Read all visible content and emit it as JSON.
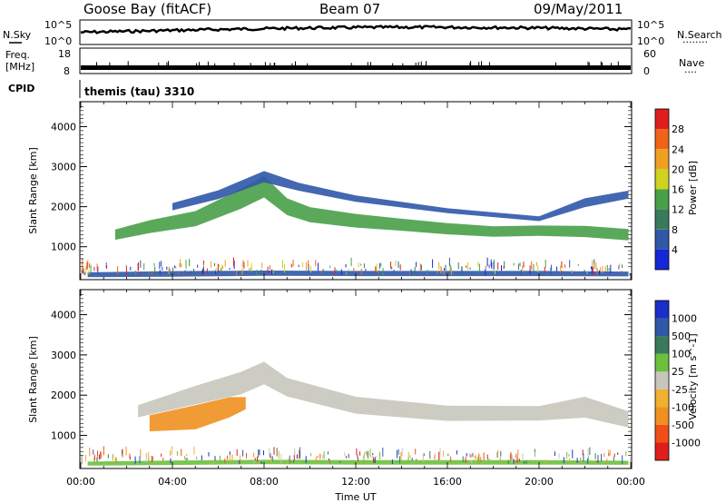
{
  "header": {
    "station": "Goose Bay (fitACF)",
    "beam": "Beam 07",
    "date": "09/May/2011"
  },
  "noise_panel": {
    "left_label": "N.Sky",
    "right_label": "N.Search",
    "right_marker": "........",
    "left_ticks": [
      "10^5",
      "10^0"
    ],
    "right_ticks": [
      "10^5",
      "10^0"
    ]
  },
  "freq_panel": {
    "left_label_line1": "Freq.",
    "left_label_line2": "[MHz]",
    "left_ticks": [
      "18",
      "8"
    ],
    "right_label": "Nave",
    "right_marker": "....",
    "right_ticks": [
      "60",
      "0"
    ]
  },
  "cpid": {
    "label": "CPID",
    "value": "themis (tau) 3310"
  },
  "x_axis": {
    "label": "Time UT",
    "ticks": [
      "00:00",
      "04:00",
      "08:00",
      "12:00",
      "16:00",
      "20:00",
      "00:00"
    ]
  },
  "colors": {
    "power_scale": [
      "#1428d8",
      "#2f58a8",
      "#3a7a5c",
      "#48a048",
      "#cfd21e",
      "#f0a020",
      "#f06418",
      "#e01e1e"
    ],
    "velocity_scale": [
      "#e01e1e",
      "#f05018",
      "#f09020",
      "#f0b030",
      "#c6c6bd",
      "#6cc03c",
      "#3a7a5c",
      "#2f58a8",
      "#1a30c8"
    ],
    "ground_scatter": "#c6c6bd"
  },
  "chart_data": [
    {
      "type": "heatmap",
      "title": "Power",
      "xlabel": "Time UT",
      "ylabel": "Slant Range [km]",
      "xlim": [
        "00:00",
        "24:00"
      ],
      "ylim": [
        200,
        4600
      ],
      "y_ticks": [
        1000,
        2000,
        3000,
        4000
      ],
      "colorbar": {
        "label": "Power [dB]",
        "ticks": [
          "4",
          "8",
          "12",
          "16",
          "20",
          "24",
          "28"
        ]
      },
      "bands": [
        {
          "name": "main-echo-band",
          "color": "#48a048",
          "points": [
            [
              1.5,
              1300
            ],
            [
              3,
              1500
            ],
            [
              5,
              1700
            ],
            [
              7,
              2200
            ],
            [
              8,
              2500
            ],
            [
              9,
              2000
            ],
            [
              10,
              1800
            ],
            [
              12,
              1650
            ],
            [
              14,
              1550
            ],
            [
              16,
              1450
            ],
            [
              18,
              1380
            ],
            [
              20,
              1400
            ],
            [
              22,
              1380
            ],
            [
              23.9,
              1300
            ]
          ],
          "thickness": [
            260,
            320,
            380,
            500,
            540,
            420,
            380,
            340,
            300,
            280,
            260,
            260,
            280,
            280
          ]
        },
        {
          "name": "upper-echo-arc",
          "color": "#2f58a8",
          "points": [
            [
              4,
              2000
            ],
            [
              6,
              2300
            ],
            [
              8,
              2750
            ],
            [
              9.5,
              2500
            ],
            [
              12,
              2200
            ],
            [
              16,
              1900
            ],
            [
              20,
              1700
            ],
            [
              22,
              2100
            ],
            [
              23.9,
              2300
            ]
          ],
          "thickness": [
            180,
            220,
            280,
            200,
            160,
            120,
            120,
            220,
            200
          ]
        },
        {
          "name": "near-range-band",
          "color": "#2f58a8",
          "points": [
            [
              0.3,
              300
            ],
            [
              4,
              320
            ],
            [
              8,
              340
            ],
            [
              12,
              330
            ],
            [
              16,
              330
            ],
            [
              20,
              330
            ],
            [
              23.9,
              320
            ]
          ],
          "thickness": [
            120,
            140,
            130,
            130,
            130,
            130,
            120
          ]
        }
      ]
    },
    {
      "type": "heatmap",
      "title": "Velocity",
      "xlabel": "Time UT",
      "ylabel": "Slant Range [km]",
      "xlim": [
        "00:00",
        "24:00"
      ],
      "ylim": [
        200,
        4600
      ],
      "y_ticks": [
        1000,
        2000,
        3000,
        4000
      ],
      "colorbar": {
        "label": "Velocity [m s^-1]",
        "ticks": [
          "-1000",
          "-500",
          "-100",
          "-25",
          "25",
          "100",
          "500",
          "1000"
        ]
      },
      "bands": [
        {
          "name": "ground-scatter-band",
          "color": "#c6c6bd",
          "points": [
            [
              2.5,
              1600
            ],
            [
              5,
              2000
            ],
            [
              7,
              2300
            ],
            [
              8,
              2550
            ],
            [
              9,
              2200
            ],
            [
              12,
              1750
            ],
            [
              16,
              1550
            ],
            [
              20,
              1550
            ],
            [
              22,
              1700
            ],
            [
              23.9,
              1400
            ]
          ],
          "thickness": [
            300,
            460,
            560,
            560,
            460,
            420,
            380,
            360,
            520,
            400
          ]
        },
        {
          "name": "negative-velocity-patch",
          "color": "#f09020",
          "points": [
            [
              3,
              1300
            ],
            [
              5,
              1450
            ],
            [
              6.5,
              1700
            ],
            [
              7.2,
              1800
            ]
          ],
          "thickness": [
            400,
            600,
            500,
            300
          ]
        },
        {
          "name": "near-range-band",
          "color": "#6cc03c",
          "points": [
            [
              0.3,
              300
            ],
            [
              4,
              320
            ],
            [
              8,
              340
            ],
            [
              12,
              330
            ],
            [
              16,
              330
            ],
            [
              20,
              330
            ],
            [
              23.9,
              320
            ]
          ],
          "thickness": [
            100,
            110,
            110,
            110,
            110,
            110,
            100
          ]
        }
      ]
    }
  ]
}
